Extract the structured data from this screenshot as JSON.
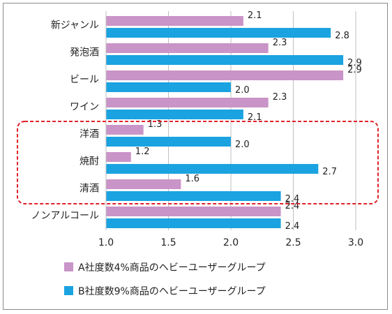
{
  "chart_data": {
    "type": "bar",
    "orientation": "horizontal",
    "categories": [
      "新ジャンル",
      "発泡酒",
      "ビール",
      "ワイン",
      "洋酒",
      "焼酎",
      "清酒",
      "ノンアルコール"
    ],
    "series": [
      {
        "name": "A社度数4%商品のヘビーユーザーグループ",
        "color": "#c994c7",
        "values": [
          2.1,
          2.3,
          2.9,
          2.3,
          1.3,
          1.2,
          1.6,
          2.4
        ]
      },
      {
        "name": "B社度数9%商品のヘビーユーザーグループ",
        "color": "#1aa3e0",
        "values": [
          2.8,
          2.9,
          2.0,
          2.1,
          2.0,
          2.7,
          2.4,
          2.4
        ]
      }
    ],
    "value_labels": [
      [
        "2.1",
        "2.3",
        "2.9",
        "2.3",
        "1.3",
        "1.2",
        "1.6",
        "2.4"
      ],
      [
        "2.8",
        "2.9",
        "2.0",
        "2.1",
        "2.0",
        "2.7",
        "2.4",
        "2.4"
      ]
    ],
    "xlim": [
      1.0,
      3.0
    ],
    "xticks": [
      "1.0",
      "1.5",
      "2.0",
      "2.5",
      "3.0"
    ],
    "grid": "vertical",
    "legend_position": "bottom-left",
    "highlight": {
      "categories": [
        "洋酒",
        "焼酎",
        "清酒"
      ],
      "style": "dashed",
      "color": "#e0202a"
    }
  }
}
